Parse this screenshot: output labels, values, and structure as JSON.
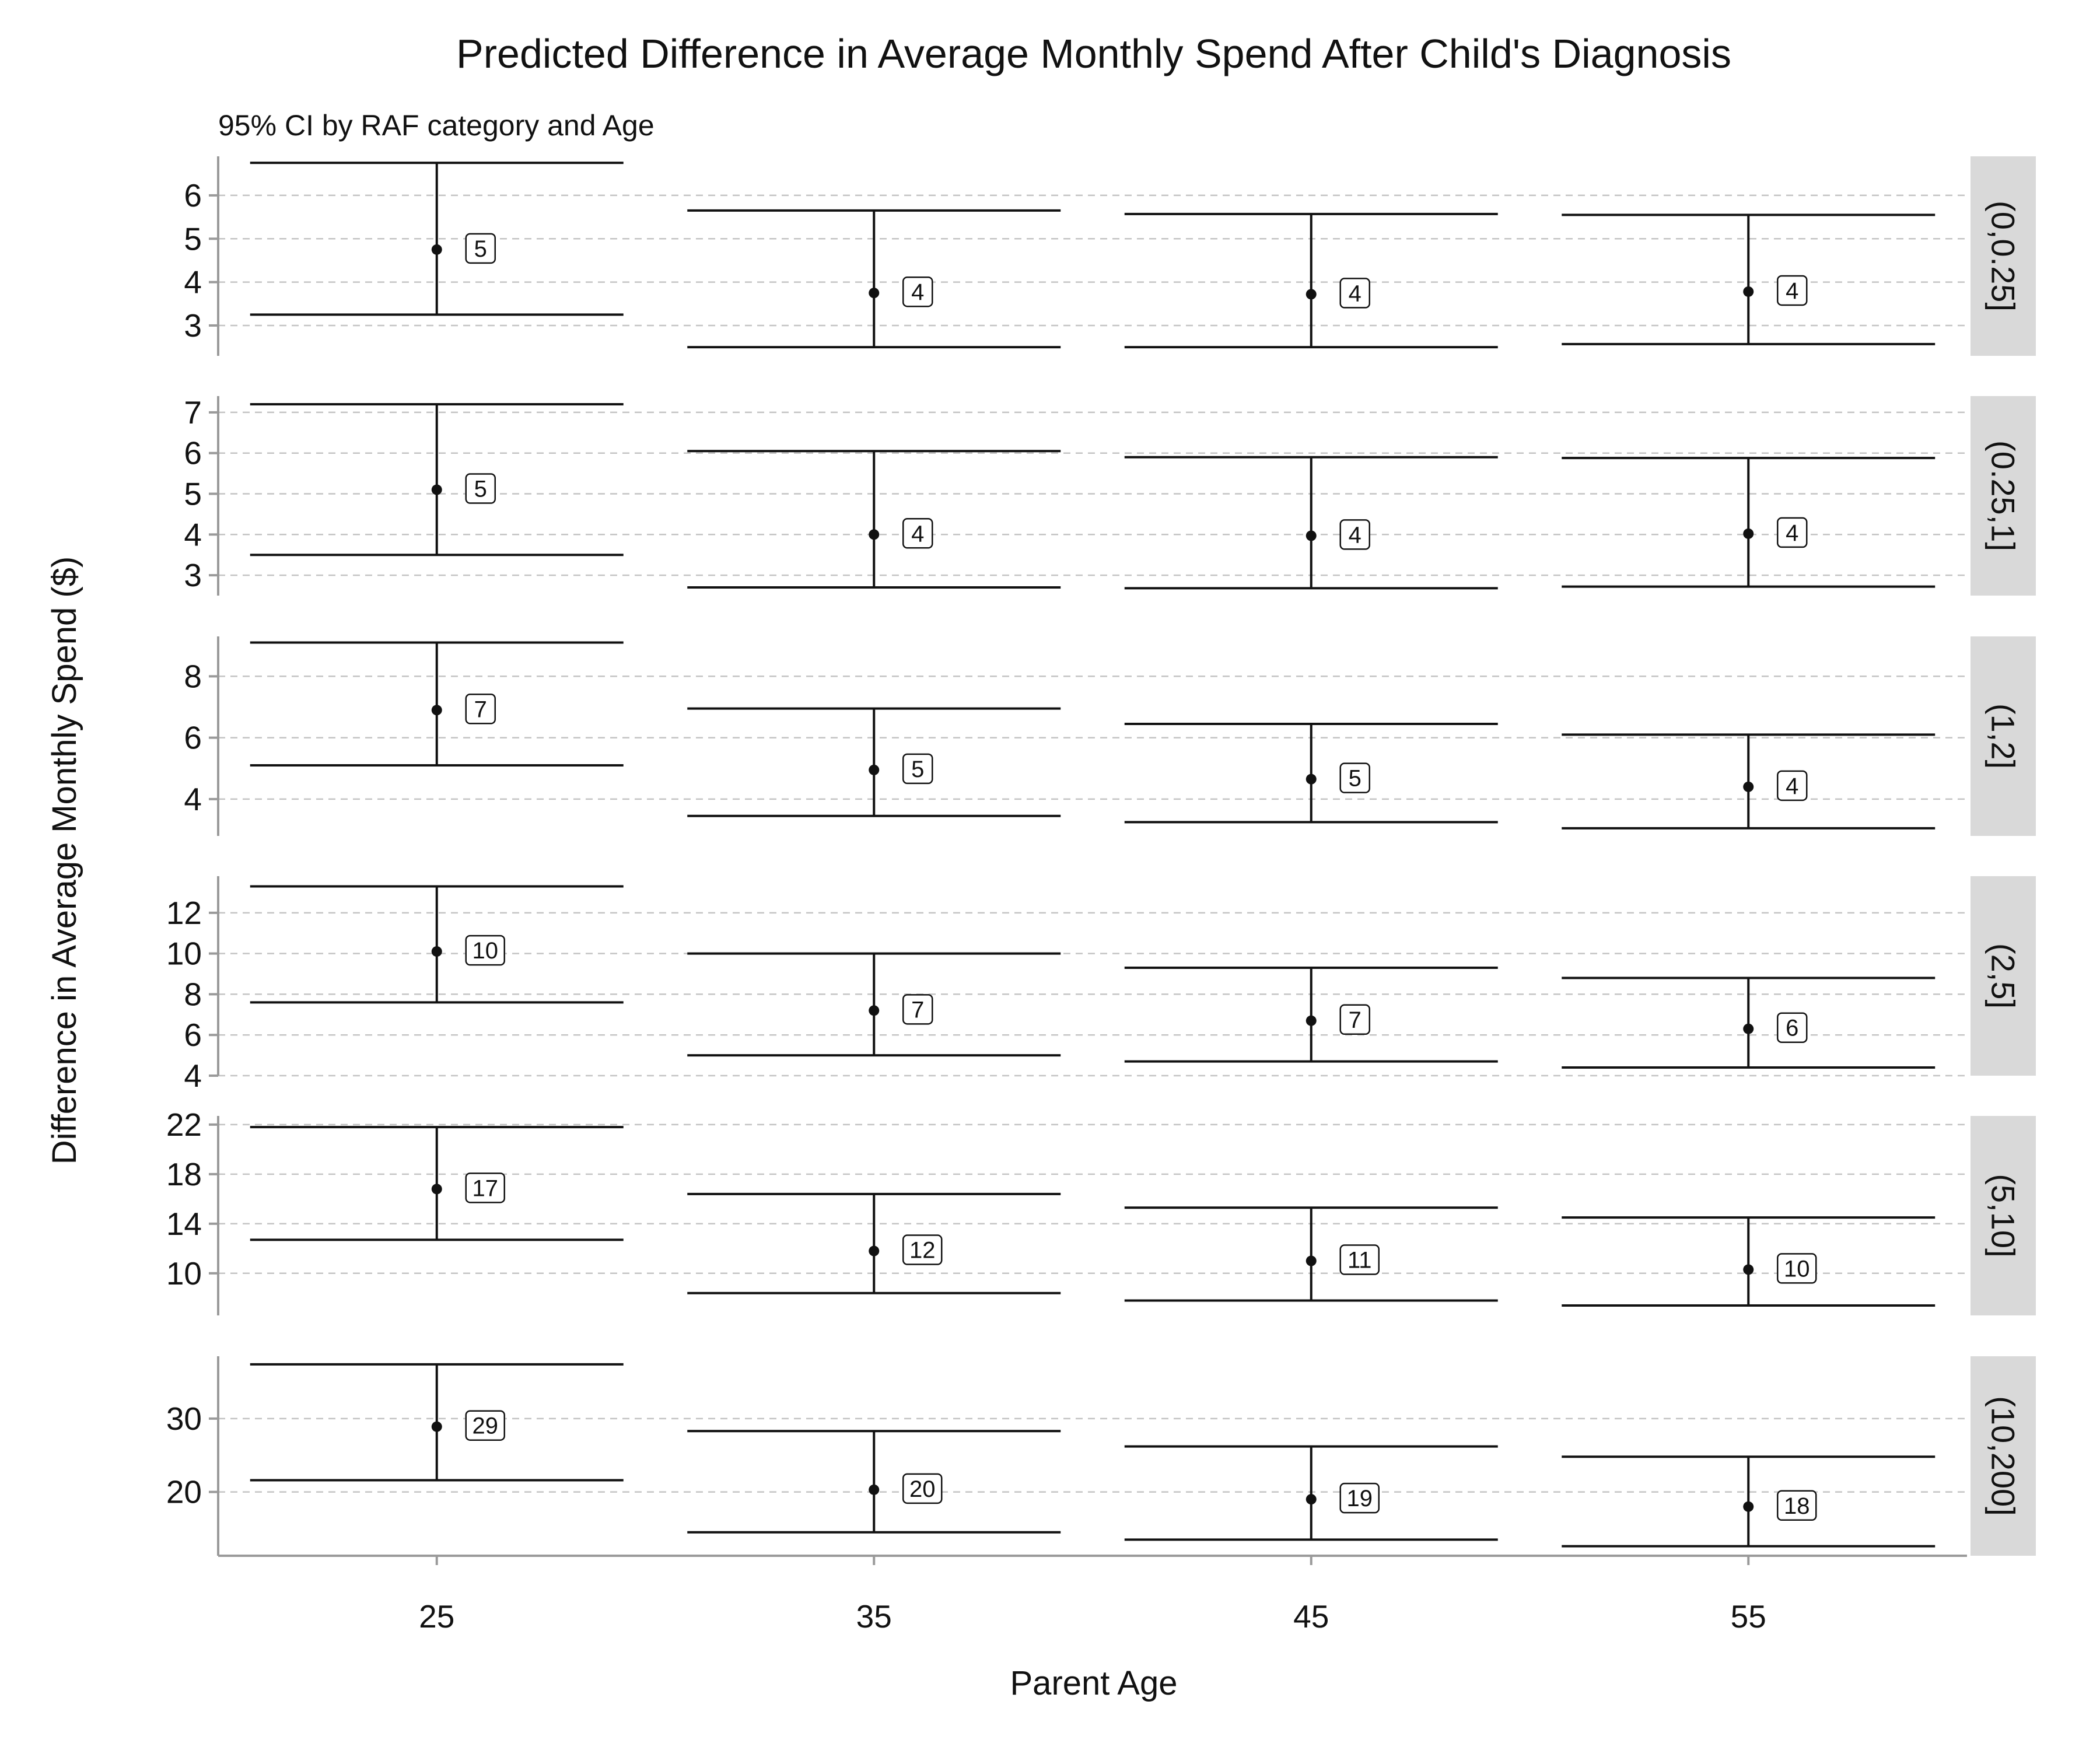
{
  "chart_data": {
    "type": "errorbar",
    "title": "Predicted Difference in Average Monthly Spend After Child's Diagnosis",
    "subtitle": "95% CI by RAF category and Age",
    "xlabel": "Parent Age",
    "ylabel": "Difference in Average Monthly Spend ($)",
    "x": [
      25,
      35,
      45,
      55
    ],
    "x_tick_labels": [
      "25",
      "35",
      "45",
      "55"
    ],
    "grid": "horizontal dashed",
    "panels": [
      {
        "facet": "(0,0.25]",
        "ylim": [
          2.3,
          6.9
        ],
        "y_ticks": [
          3,
          4,
          5,
          6
        ],
        "points": [
          {
            "x": 25,
            "estimate": 4.75,
            "lower": 3.25,
            "upper": 6.75,
            "label": "5"
          },
          {
            "x": 35,
            "estimate": 3.75,
            "lower": 2.5,
            "upper": 5.65,
            "label": "4"
          },
          {
            "x": 45,
            "estimate": 3.72,
            "lower": 2.5,
            "upper": 5.57,
            "label": "4"
          },
          {
            "x": 55,
            "estimate": 3.78,
            "lower": 2.57,
            "upper": 5.55,
            "label": "4"
          }
        ]
      },
      {
        "facet": "(0.25,1]",
        "ylim": [
          2.5,
          7.4
        ],
        "y_ticks": [
          3,
          4,
          5,
          6,
          7
        ],
        "points": [
          {
            "x": 25,
            "estimate": 5.1,
            "lower": 3.5,
            "upper": 7.2,
            "label": "5"
          },
          {
            "x": 35,
            "estimate": 4.0,
            "lower": 2.7,
            "upper": 6.05,
            "label": "4"
          },
          {
            "x": 45,
            "estimate": 3.97,
            "lower": 2.68,
            "upper": 5.9,
            "label": "4"
          },
          {
            "x": 55,
            "estimate": 4.02,
            "lower": 2.72,
            "upper": 5.88,
            "label": "4"
          }
        ]
      },
      {
        "facet": "(1,2]",
        "ylim": [
          2.8,
          9.3
        ],
        "y_ticks": [
          4,
          6,
          8
        ],
        "points": [
          {
            "x": 25,
            "estimate": 6.9,
            "lower": 5.1,
            "upper": 9.1,
            "label": "7"
          },
          {
            "x": 35,
            "estimate": 4.95,
            "lower": 3.45,
            "upper": 6.95,
            "label": "5"
          },
          {
            "x": 45,
            "estimate": 4.65,
            "lower": 3.25,
            "upper": 6.45,
            "label": "5"
          },
          {
            "x": 55,
            "estimate": 4.4,
            "lower": 3.05,
            "upper": 6.1,
            "label": "4"
          }
        ]
      },
      {
        "facet": "(2,5]",
        "ylim": [
          4.0,
          13.8
        ],
        "y_ticks": [
          4,
          6,
          8,
          10,
          12
        ],
        "points": [
          {
            "x": 25,
            "estimate": 10.1,
            "lower": 7.6,
            "upper": 13.3,
            "label": "10"
          },
          {
            "x": 35,
            "estimate": 7.2,
            "lower": 5.0,
            "upper": 10.0,
            "label": "7"
          },
          {
            "x": 45,
            "estimate": 6.7,
            "lower": 4.7,
            "upper": 9.3,
            "label": "7"
          },
          {
            "x": 55,
            "estimate": 6.3,
            "lower": 4.4,
            "upper": 8.8,
            "label": "6"
          }
        ]
      },
      {
        "facet": "(5,10]",
        "ylim": [
          6.6,
          22.7
        ],
        "y_ticks": [
          10,
          14,
          18,
          22
        ],
        "points": [
          {
            "x": 25,
            "estimate": 16.8,
            "lower": 12.7,
            "upper": 21.8,
            "label": "17"
          },
          {
            "x": 35,
            "estimate": 11.8,
            "lower": 8.4,
            "upper": 16.4,
            "label": "12"
          },
          {
            "x": 45,
            "estimate": 11.0,
            "lower": 7.8,
            "upper": 15.3,
            "label": "11"
          },
          {
            "x": 55,
            "estimate": 10.3,
            "lower": 7.4,
            "upper": 14.5,
            "label": "10"
          }
        ]
      },
      {
        "facet": "(10,200]",
        "ylim": [
          11.3,
          38.5
        ],
        "y_ticks": [
          20,
          30
        ],
        "points": [
          {
            "x": 25,
            "estimate": 28.9,
            "lower": 21.6,
            "upper": 37.4,
            "label": "29"
          },
          {
            "x": 35,
            "estimate": 20.3,
            "lower": 14.5,
            "upper": 28.3,
            "label": "20"
          },
          {
            "x": 45,
            "estimate": 19.0,
            "lower": 13.5,
            "upper": 26.2,
            "label": "19"
          },
          {
            "x": 55,
            "estimate": 18.0,
            "lower": 12.6,
            "upper": 24.8,
            "label": "18"
          }
        ]
      }
    ]
  },
  "colors": {
    "ink": "#111111",
    "axis": "#9a9a9a",
    "grid": "#c4c4c4",
    "strip": "#d9d9d9",
    "background": "#ffffff"
  }
}
